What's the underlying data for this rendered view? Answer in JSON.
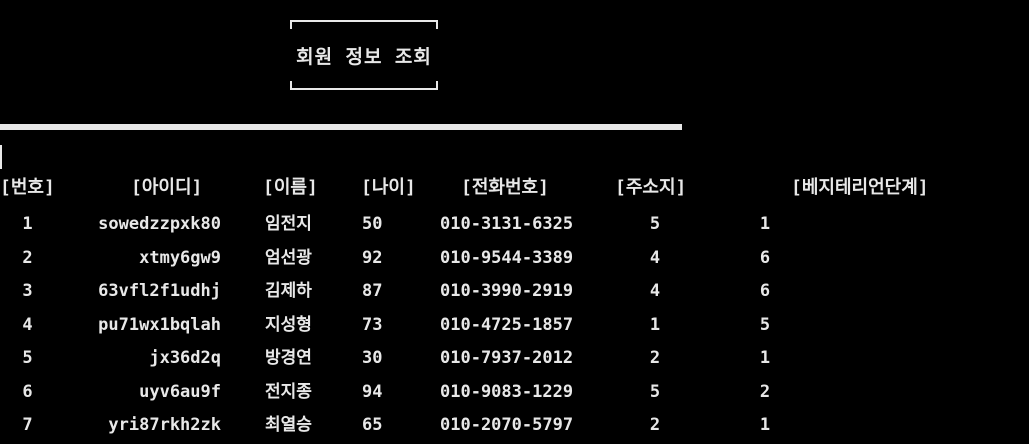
{
  "title": "회원 정보 조회",
  "headers": {
    "num": "[번호]",
    "id": "[아이디]",
    "name": "[이름]",
    "age": "[나이]",
    "tel": "[전화번호]",
    "addr": "[주소지]",
    "veg": "[베지테리언단계]"
  },
  "rows": [
    {
      "num": "1",
      "id": "sowedzzpxk80",
      "name": "임전지",
      "age": "50",
      "tel": "010-3131-6325",
      "addr": "5",
      "veg": "1"
    },
    {
      "num": "2",
      "id": "xtmy6gw9",
      "name": "엄선광",
      "age": "92",
      "tel": "010-9544-3389",
      "addr": "4",
      "veg": "6"
    },
    {
      "num": "3",
      "id": "63vfl2f1udhj",
      "name": "김제하",
      "age": "87",
      "tel": "010-3990-2919",
      "addr": "4",
      "veg": "6"
    },
    {
      "num": "4",
      "id": "pu71wx1bqlah",
      "name": "지성형",
      "age": "73",
      "tel": "010-4725-1857",
      "addr": "1",
      "veg": "5"
    },
    {
      "num": "5",
      "id": "jx36d2q",
      "name": "방경연",
      "age": "30",
      "tel": "010-7937-2012",
      "addr": "2",
      "veg": "1"
    },
    {
      "num": "6",
      "id": "uyv6au9f",
      "name": "전지종",
      "age": "94",
      "tel": "010-9083-1229",
      "addr": "5",
      "veg": "2"
    },
    {
      "num": "7",
      "id": "yri87rkh2zk",
      "name": "최열승",
      "age": "65",
      "tel": "010-2070-5797",
      "addr": "2",
      "veg": "1"
    }
  ]
}
